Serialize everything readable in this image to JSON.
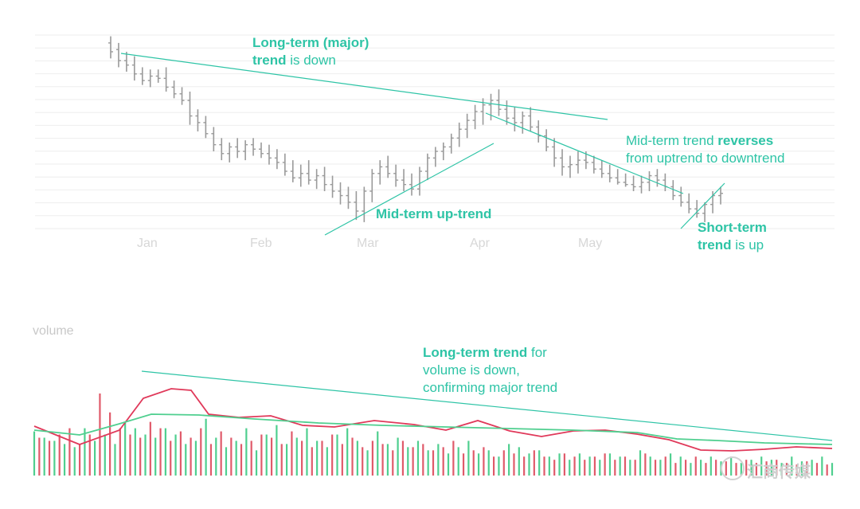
{
  "annotations": {
    "long_term": {
      "bold": "Long-term (major)",
      "bold2": "trend",
      "rest": " is down"
    },
    "mid_reverse": {
      "line1_pre": "Mid-term trend ",
      "line1_bold": "reverses",
      "line2": "from uptrend to downtrend"
    },
    "mid_up": {
      "bold": "Mid-term up-trend"
    },
    "short_term": {
      "bold": "Short-term",
      "bold2": "trend",
      "rest": " is up"
    },
    "volume": {
      "bold": "Long-term trend",
      "rest1": " for",
      "line2": "volume is down,",
      "line3": "confirming major trend"
    }
  },
  "axis": {
    "months": [
      "Jan",
      "Feb",
      "Mar",
      "Apr",
      "May"
    ],
    "volume_title": "volume"
  },
  "watermark": "汇商传媒",
  "colors": {
    "accent": "#2ec4a6",
    "price_bar": "#9a9a9a",
    "grid": "#eeeeee",
    "volume_up": "#4fcf8f",
    "volume_down": "#e05a6a",
    "volume_ma_fast": "#e0395a",
    "volume_ma_slow": "#4fcf8f"
  },
  "chart_data": [
    {
      "type": "bar",
      "subtype": "ohlc",
      "x_tick_labels": [
        "Jan",
        "Feb",
        "Mar",
        "Apr",
        "May"
      ],
      "price_series": [
        [
          0.55,
          0.48,
          0.58,
          0.51
        ],
        [
          0.52,
          0.44,
          0.55,
          0.47
        ],
        [
          0.47,
          0.42,
          0.51,
          0.45
        ],
        [
          0.45,
          0.38,
          0.49,
          0.41
        ],
        [
          0.41,
          0.36,
          0.44,
          0.38
        ],
        [
          0.38,
          0.35,
          0.43,
          0.4
        ],
        [
          0.4,
          0.37,
          0.43,
          0.39
        ],
        [
          0.39,
          0.33,
          0.44,
          0.35
        ],
        [
          0.35,
          0.3,
          0.38,
          0.32
        ],
        [
          0.32,
          0.27,
          0.35,
          0.29
        ],
        [
          0.29,
          0.18,
          0.33,
          0.22
        ],
        [
          0.22,
          0.15,
          0.25,
          0.19
        ],
        [
          0.19,
          0.12,
          0.22,
          0.14
        ],
        [
          0.14,
          0.06,
          0.17,
          0.09
        ],
        [
          0.09,
          0.02,
          0.12,
          0.05
        ],
        [
          0.05,
          0.01,
          0.1,
          0.08
        ],
        [
          0.08,
          0.03,
          0.12,
          0.06
        ],
        [
          0.06,
          0.02,
          0.11,
          0.09
        ],
        [
          0.09,
          0.04,
          0.12,
          0.07
        ],
        [
          0.07,
          0.03,
          0.1,
          0.05
        ],
        [
          0.05,
          0.0,
          0.09,
          0.03
        ],
        [
          0.03,
          -0.02,
          0.07,
          0.01
        ],
        [
          0.01,
          -0.05,
          0.05,
          -0.03
        ],
        [
          -0.03,
          -0.08,
          0.02,
          -0.06
        ],
        [
          -0.06,
          -0.1,
          0.0,
          -0.04
        ],
        [
          -0.04,
          -0.09,
          0.02,
          -0.07
        ],
        [
          -0.07,
          -0.11,
          -0.02,
          -0.05
        ],
        [
          -0.05,
          -0.12,
          -0.01,
          -0.09
        ],
        [
          -0.09,
          -0.15,
          -0.05,
          -0.12
        ],
        [
          -0.12,
          -0.18,
          -0.08,
          -0.14
        ],
        [
          -0.14,
          -0.2,
          -0.1,
          -0.17
        ],
        [
          -0.17,
          -0.25,
          -0.12,
          -0.21
        ],
        [
          -0.21,
          -0.26,
          -0.1,
          -0.12
        ],
        [
          -0.12,
          -0.17,
          -0.02,
          -0.04
        ],
        [
          -0.04,
          -0.09,
          0.02,
          -0.01
        ],
        [
          -0.01,
          -0.06,
          0.04,
          -0.04
        ],
        [
          -0.04,
          -0.1,
          0.0,
          -0.07
        ],
        [
          -0.07,
          -0.12,
          -0.02,
          -0.09
        ],
        [
          -0.09,
          -0.14,
          -0.04,
          -0.11
        ],
        [
          -0.11,
          -0.14,
          -0.01,
          -0.03
        ],
        [
          -0.03,
          -0.07,
          0.05,
          0.03
        ],
        [
          0.03,
          -0.01,
          0.08,
          0.06
        ],
        [
          0.06,
          0.02,
          0.1,
          0.08
        ],
        [
          0.08,
          0.05,
          0.14,
          0.12
        ],
        [
          0.12,
          0.08,
          0.19,
          0.16
        ],
        [
          0.16,
          0.12,
          0.23,
          0.2
        ],
        [
          0.2,
          0.16,
          0.27,
          0.24
        ],
        [
          0.24,
          0.18,
          0.3,
          0.27
        ],
        [
          0.27,
          0.2,
          0.32,
          0.29
        ],
        [
          0.29,
          0.22,
          0.34,
          0.25
        ],
        [
          0.25,
          0.18,
          0.29,
          0.21
        ],
        [
          0.21,
          0.15,
          0.26,
          0.19
        ],
        [
          0.19,
          0.14,
          0.24,
          0.22
        ],
        [
          0.22,
          0.15,
          0.26,
          0.17
        ],
        [
          0.17,
          0.1,
          0.2,
          0.13
        ],
        [
          0.13,
          0.06,
          0.16,
          0.08
        ],
        [
          0.08,
          -0.01,
          0.12,
          0.03
        ],
        [
          0.03,
          -0.05,
          0.07,
          -0.01
        ],
        [
          -0.01,
          -0.06,
          0.04,
          0.0
        ],
        [
          0.0,
          -0.04,
          0.06,
          0.02
        ],
        [
          0.02,
          -0.02,
          0.06,
          0.01
        ],
        [
          0.01,
          -0.04,
          0.04,
          -0.02
        ],
        [
          -0.02,
          -0.06,
          0.02,
          -0.04
        ],
        [
          -0.04,
          -0.08,
          0.0,
          -0.06
        ],
        [
          -0.06,
          -0.09,
          -0.02,
          -0.08
        ],
        [
          -0.08,
          -0.1,
          -0.04,
          -0.09
        ],
        [
          -0.09,
          -0.12,
          -0.05,
          -0.1
        ],
        [
          -0.1,
          -0.13,
          -0.05,
          -0.08
        ],
        [
          -0.08,
          -0.12,
          -0.03,
          -0.05
        ],
        [
          -0.05,
          -0.1,
          -0.02,
          -0.07
        ],
        [
          -0.07,
          -0.12,
          -0.04,
          -0.1
        ],
        [
          -0.1,
          -0.16,
          -0.07,
          -0.14
        ],
        [
          -0.14,
          -0.19,
          -0.1,
          -0.17
        ],
        [
          -0.17,
          -0.22,
          -0.13,
          -0.2
        ],
        [
          -0.2,
          -0.24,
          -0.16,
          -0.22
        ],
        [
          -0.22,
          -0.26,
          -0.17,
          -0.18
        ],
        [
          -0.18,
          -0.22,
          -0.12,
          -0.14
        ],
        [
          -0.14,
          -0.18,
          -0.1,
          -0.13
        ]
      ],
      "yscale_note": "relative price"
    },
    {
      "type": "bar",
      "title": "volume",
      "volume_series": {
        "up": [
          0.28,
          0.24,
          0.22,
          0.2,
          0.18,
          0.3,
          0.22,
          0.26,
          0.2,
          0.34,
          0.3,
          0.26,
          0.24,
          0.3,
          0.26,
          0.2,
          0.22,
          0.36,
          0.24,
          0.18,
          0.22,
          0.3,
          0.16,
          0.26,
          0.32,
          0.2,
          0.24,
          0.3,
          0.22,
          0.18,
          0.26,
          0.3,
          0.22,
          0.16,
          0.28,
          0.2,
          0.24,
          0.18,
          0.22,
          0.16,
          0.2,
          0.14,
          0.18,
          0.22,
          0.14,
          0.16,
          0.12,
          0.2,
          0.18,
          0.14,
          0.16,
          0.12,
          0.14,
          0.1,
          0.14,
          0.12,
          0.1,
          0.14,
          0.12,
          0.1,
          0.16,
          0.12,
          0.1,
          0.14,
          0.12,
          0.08,
          0.1,
          0.12,
          0.09,
          0.12,
          0.08,
          0.1,
          0.12,
          0.1,
          0.08,
          0.12,
          0.09,
          0.1,
          0.12,
          0.08
        ],
        "down": [
          0.24,
          0.22,
          0.26,
          0.3,
          0.2,
          0.26,
          0.52,
          0.4,
          0.3,
          0.26,
          0.24,
          0.34,
          0.3,
          0.22,
          0.28,
          0.24,
          0.3,
          0.2,
          0.28,
          0.24,
          0.2,
          0.22,
          0.26,
          0.24,
          0.2,
          0.28,
          0.22,
          0.18,
          0.22,
          0.26,
          0.2,
          0.24,
          0.18,
          0.22,
          0.2,
          0.16,
          0.22,
          0.18,
          0.2,
          0.16,
          0.18,
          0.22,
          0.14,
          0.16,
          0.18,
          0.12,
          0.16,
          0.14,
          0.12,
          0.16,
          0.12,
          0.1,
          0.14,
          0.12,
          0.1,
          0.12,
          0.14,
          0.1,
          0.12,
          0.1,
          0.14,
          0.1,
          0.12,
          0.08,
          0.1,
          0.12,
          0.08,
          0.1,
          0.09,
          0.08,
          0.1,
          0.08,
          0.09,
          0.1,
          0.08,
          0.07,
          0.09,
          0.08,
          0.07,
          0.08
        ]
      }
    }
  ]
}
